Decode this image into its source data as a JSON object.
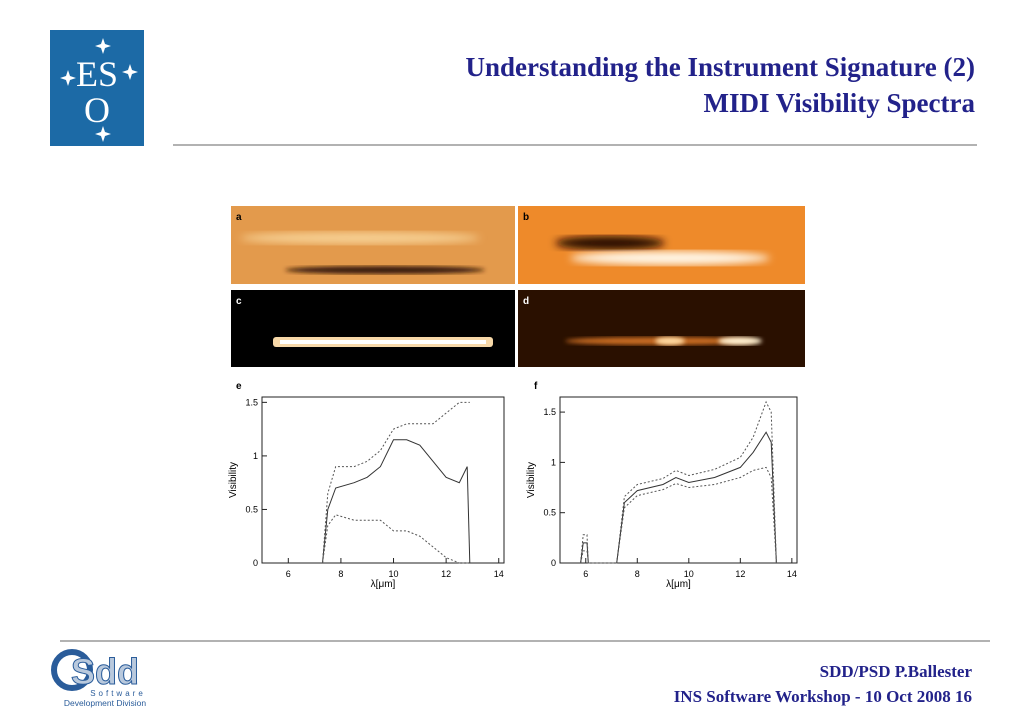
{
  "header": {
    "title_line1": "Understanding the Instrument Signature (2)",
    "title_line2": "MIDI Visibility Spectra"
  },
  "eso_logo": {
    "top": "ES",
    "bottom": "O"
  },
  "figure": {
    "panels": [
      "a",
      "b",
      "c",
      "d"
    ],
    "plots": [
      {
        "type": "line",
        "label": "e",
        "xlabel": "λ[μm]",
        "ylabel": "Visibility",
        "xlim": [
          5,
          14.2
        ],
        "ylim": [
          0,
          1.55
        ],
        "xticks": [
          6,
          8,
          10,
          12,
          14
        ],
        "yticks": [
          0,
          0.5,
          1,
          1.5
        ],
        "x": [
          7.3,
          7.5,
          7.8,
          8.5,
          9,
          9.5,
          10,
          10.5,
          11,
          11.5,
          12,
          12.5,
          12.8,
          12.9
        ],
        "series": [
          {
            "color": "#333333",
            "values": [
              0,
              0.5,
              0.7,
              0.75,
              0.8,
              0.9,
              1.15,
              1.15,
              1.1,
              0.95,
              0.8,
              0.75,
              0.9,
              0
            ]
          },
          {
            "color": "#555555",
            "values": [
              0,
              0.65,
              0.9,
              0.9,
              0.95,
              1.05,
              1.25,
              1.3,
              1.3,
              1.3,
              1.4,
              1.5,
              1.5,
              1.5
            ]
          },
          {
            "color": "#555555",
            "values": [
              0,
              0.35,
              0.45,
              0.4,
              0.4,
              0.4,
              0.3,
              0.3,
              0.25,
              0.15,
              0.05,
              0,
              0,
              0
            ]
          }
        ]
      },
      {
        "type": "line",
        "label": "f",
        "xlabel": "λ[μm]",
        "ylabel": "Visibility",
        "xlim": [
          5,
          14.2
        ],
        "ylim": [
          0,
          1.65
        ],
        "xticks": [
          6,
          8,
          10,
          12,
          14
        ],
        "yticks": [
          0,
          0.5,
          1,
          1.5
        ],
        "x": [
          5.8,
          5.9,
          6.05,
          6.1,
          7.2,
          7.5,
          8,
          9,
          9.5,
          10,
          11,
          12,
          12.5,
          13,
          13.2,
          13.4
        ],
        "series": [
          {
            "color": "#333333",
            "values": [
              0,
              0.2,
              0.2,
              0,
              0,
              0.6,
              0.72,
              0.78,
              0.85,
              0.8,
              0.85,
              0.95,
              1.1,
              1.3,
              1.2,
              0
            ]
          },
          {
            "color": "#555555",
            "values": [
              0,
              0.28,
              0.28,
              0,
              0,
              0.66,
              0.78,
              0.84,
              0.92,
              0.87,
              0.93,
              1.05,
              1.25,
              1.6,
              1.5,
              0
            ]
          },
          {
            "color": "#555555",
            "values": [
              0,
              0.12,
              0.12,
              0,
              0,
              0.55,
              0.67,
              0.73,
              0.79,
              0.75,
              0.78,
              0.85,
              0.92,
              0.95,
              0.85,
              0
            ]
          }
        ]
      }
    ]
  },
  "sdd_logo": {
    "name": "Sdd",
    "line1": "Software",
    "line2": "Development Division"
  },
  "footer": {
    "author": "SDD/PSD P.Ballester",
    "event": "INS Software Workshop -  10 Oct 2008  16"
  }
}
